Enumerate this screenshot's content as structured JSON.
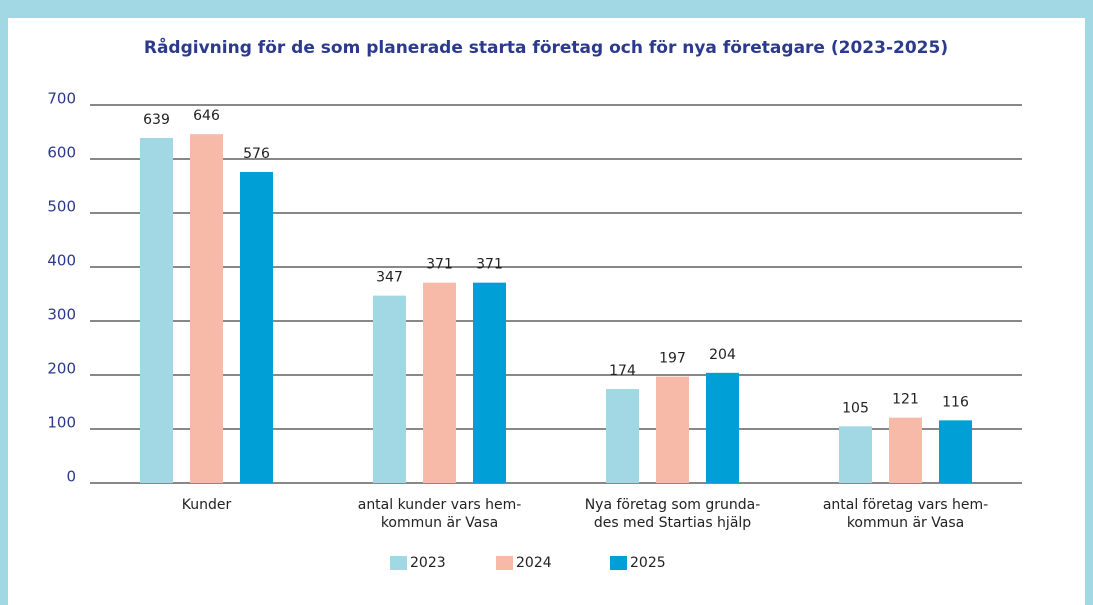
{
  "chart_data": {
    "type": "bar",
    "title": "Rådgivning för de som planerade starta företag och för nya företagare (2023-2025)",
    "categories": [
      [
        "Kunder"
      ],
      [
        "antal kunder vars hem-",
        "kommun är Vasa"
      ],
      [
        "Nya företag som grunda-",
        "des med Startias hjälp"
      ],
      [
        "antal företag vars hem-",
        "kommun är Vasa"
      ]
    ],
    "series": [
      {
        "name": "2023",
        "color": "#a2d8e4",
        "values": [
          639,
          347,
          174,
          105
        ]
      },
      {
        "name": "2024",
        "color": "#f7b9a8",
        "values": [
          646,
          371,
          197,
          121
        ]
      },
      {
        "name": "2025",
        "color": "#009fd6",
        "values": [
          576,
          371,
          204,
          116
        ]
      }
    ],
    "ylim": [
      0,
      700
    ],
    "yticks": [
      0,
      100,
      200,
      300,
      400,
      500,
      600,
      700
    ],
    "grid": true,
    "legend": "bottom"
  }
}
